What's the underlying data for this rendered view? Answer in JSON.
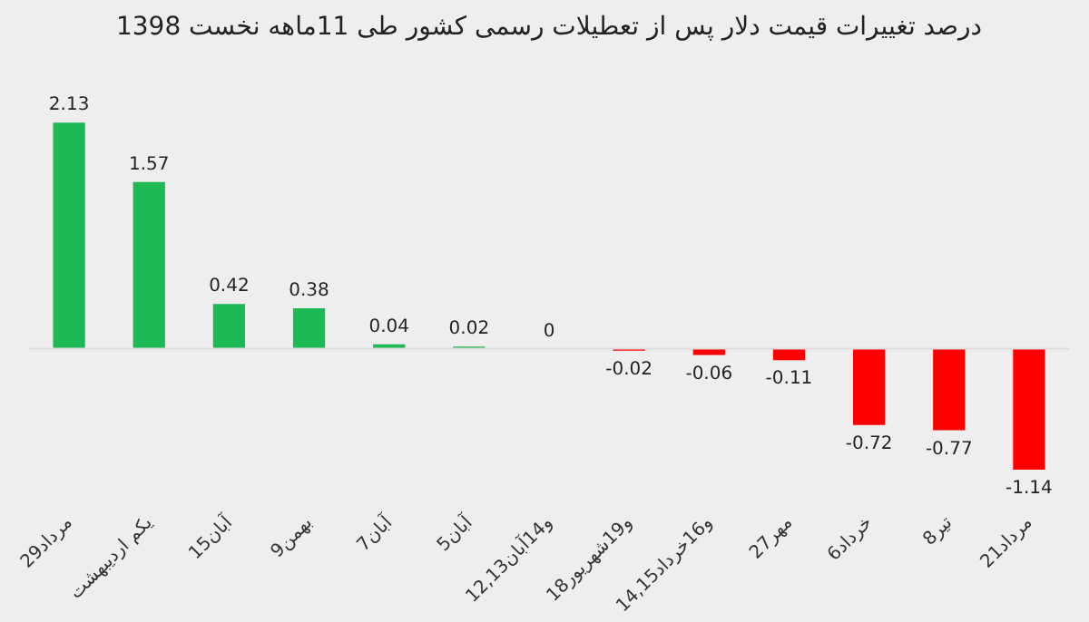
{
  "chart_data": {
    "type": "bar",
    "title": "درصد تغییرات قیمت دلار پس از تعطیلات رسمی کشور طی 11ماهه نخست 1398",
    "categories": [
      "29مرداد",
      "یکم اردیبهشت",
      "15آبان",
      "9بهمن",
      "7آبان",
      "5آبان",
      "12,13و14آبان",
      "18و19شهریور",
      "14,15و16خرداد",
      "27مهر",
      "6خرداد",
      "8تیر",
      "21مرداد"
    ],
    "values": [
      2.13,
      1.57,
      0.42,
      0.38,
      0.04,
      0.02,
      0,
      -0.02,
      -0.06,
      -0.11,
      -0.72,
      -0.77,
      -1.14
    ],
    "colors": [
      "#1db954",
      "#1db954",
      "#1db954",
      "#1db954",
      "#1db954",
      "#1db954",
      "#1db954",
      "#ff0000",
      "#ff0000",
      "#ff0000",
      "#ff0000",
      "#ff0000",
      "#ff0000"
    ],
    "data_labels": true,
    "tick_labels": "x"
  }
}
